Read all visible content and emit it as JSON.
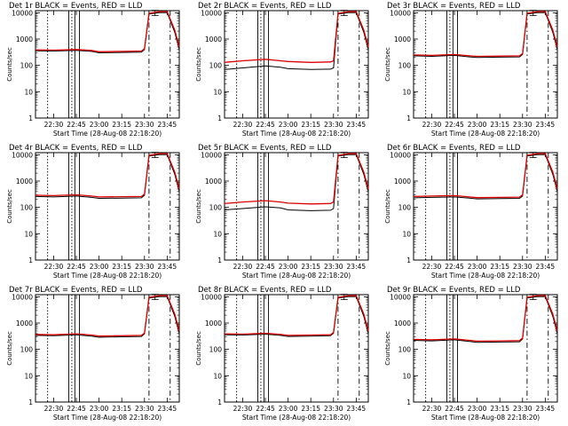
{
  "figure": {
    "xlabel": "Start Time (28-Aug-08 22:18:20)",
    "ylabel": "Counts/sec",
    "legend_text": "BLACK = Events, RED = LLD"
  },
  "colors": {
    "events": "#000000",
    "lld": "#dd0000",
    "axes": "#000000",
    "background": "#ffffff"
  },
  "chart_data": [
    {
      "type": "line",
      "title": "Det 1r BLACK = Events, RED = LLD",
      "xlabel": "Start Time (28-Aug-08 22:18:20)",
      "ylabel": "Counts/sec",
      "y_scale": "log",
      "ylim": [
        1,
        12000
      ],
      "xlim": [
        "22:18",
        "23:53"
      ],
      "x_ticks": [
        "22:30",
        "22:45",
        "23:00",
        "23:15",
        "23:30",
        "23:45"
      ],
      "y_ticks": [
        "1",
        "10",
        "100",
        "1000",
        "10000"
      ],
      "series": [
        {
          "name": "Events",
          "x": [
            "22:18",
            "22:30",
            "22:45",
            "22:55",
            "23:00",
            "23:15",
            "23:28",
            "23:30",
            "23:33",
            "23:40",
            "23:45",
            "23:50",
            "23:53"
          ],
          "y": [
            360,
            350,
            370,
            340,
            300,
            310,
            320,
            400,
            9000,
            10000,
            10000,
            1800,
            400
          ]
        },
        {
          "name": "LLD",
          "x": [
            "22:18",
            "22:30",
            "22:45",
            "22:55",
            "23:00",
            "23:15",
            "23:28",
            "23:30",
            "23:33",
            "23:40",
            "23:45",
            "23:50",
            "23:53"
          ],
          "y": [
            390,
            380,
            400,
            370,
            330,
            340,
            350,
            430,
            9500,
            11000,
            11000,
            2200,
            500
          ]
        }
      ]
    },
    {
      "type": "line",
      "title": "Det 2r BLACK = Events, RED = LLD",
      "xlabel": "Start Time (28-Aug-08 22:18:20)",
      "ylabel": "Counts/sec",
      "y_scale": "log",
      "ylim": [
        1,
        12000
      ],
      "xlim": [
        "22:18",
        "23:53"
      ],
      "x_ticks": [
        "22:30",
        "22:45",
        "23:00",
        "23:15",
        "23:30",
        "23:45"
      ],
      "y_ticks": [
        "1",
        "10",
        "100",
        "1000",
        "10000"
      ],
      "series": [
        {
          "name": "Events",
          "x": [
            "22:18",
            "22:30",
            "22:45",
            "22:55",
            "23:00",
            "23:15",
            "23:28",
            "23:30",
            "23:33",
            "23:40",
            "23:45",
            "23:50",
            "23:53"
          ],
          "y": [
            70,
            80,
            95,
            85,
            75,
            70,
            72,
            80,
            9000,
            10000,
            10000,
            1800,
            400
          ]
        },
        {
          "name": "LLD",
          "x": [
            "22:18",
            "22:30",
            "22:45",
            "22:55",
            "23:00",
            "23:15",
            "23:28",
            "23:30",
            "23:33",
            "23:40",
            "23:45",
            "23:50",
            "23:53"
          ],
          "y": [
            130,
            150,
            170,
            150,
            140,
            130,
            135,
            150,
            9500,
            11000,
            11000,
            2200,
            500
          ]
        }
      ]
    },
    {
      "type": "line",
      "title": "Det 3r BLACK = Events, RED = LLD",
      "xlabel": "Start Time (28-Aug-08 22:18:20)",
      "ylabel": "Counts/sec",
      "y_scale": "log",
      "ylim": [
        1,
        12000
      ],
      "xlim": [
        "22:18",
        "23:53"
      ],
      "x_ticks": [
        "22:30",
        "22:45",
        "23:00",
        "23:15",
        "23:30",
        "23:45"
      ],
      "y_ticks": [
        "1",
        "10",
        "100",
        "1000",
        "10000"
      ],
      "series": [
        {
          "name": "Events",
          "x": [
            "22:18",
            "22:30",
            "22:45",
            "22:55",
            "23:00",
            "23:15",
            "23:28",
            "23:30",
            "23:33",
            "23:40",
            "23:45",
            "23:50",
            "23:53"
          ],
          "y": [
            230,
            220,
            240,
            210,
            200,
            205,
            210,
            260,
            9000,
            10000,
            10000,
            1800,
            400
          ]
        },
        {
          "name": "LLD",
          "x": [
            "22:18",
            "22:30",
            "22:45",
            "22:55",
            "23:00",
            "23:15",
            "23:28",
            "23:30",
            "23:33",
            "23:40",
            "23:45",
            "23:50",
            "23:53"
          ],
          "y": [
            250,
            240,
            260,
            230,
            220,
            225,
            230,
            280,
            9500,
            11000,
            11000,
            2200,
            500
          ]
        }
      ]
    },
    {
      "type": "line",
      "title": "Det 4r BLACK = Events, RED = LLD",
      "xlabel": "Start Time (28-Aug-08 22:18:20)",
      "ylabel": "Counts/sec",
      "y_scale": "log",
      "ylim": [
        1,
        12000
      ],
      "xlim": [
        "22:18",
        "23:53"
      ],
      "x_ticks": [
        "22:30",
        "22:45",
        "23:00",
        "23:15",
        "23:30",
        "23:45"
      ],
      "y_ticks": [
        "1",
        "10",
        "100",
        "1000",
        "10000"
      ],
      "series": [
        {
          "name": "Events",
          "x": [
            "22:18",
            "22:30",
            "22:45",
            "22:55",
            "23:00",
            "23:15",
            "23:28",
            "23:30",
            "23:33",
            "23:40",
            "23:45",
            "23:50",
            "23:53"
          ],
          "y": [
            260,
            250,
            270,
            240,
            220,
            225,
            230,
            290,
            9000,
            10000,
            10000,
            1800,
            400
          ]
        },
        {
          "name": "LLD",
          "x": [
            "22:18",
            "22:30",
            "22:45",
            "22:55",
            "23:00",
            "23:15",
            "23:28",
            "23:30",
            "23:33",
            "23:40",
            "23:45",
            "23:50",
            "23:53"
          ],
          "y": [
            290,
            280,
            300,
            270,
            250,
            255,
            260,
            320,
            9500,
            11000,
            11000,
            2200,
            500
          ]
        }
      ]
    },
    {
      "type": "line",
      "title": "Det 5r BLACK = Events, RED = LLD",
      "xlabel": "Start Time (28-Aug-08 22:18:20)",
      "ylabel": "Counts/sec",
      "y_scale": "log",
      "ylim": [
        1,
        12000
      ],
      "xlim": [
        "22:18",
        "23:53"
      ],
      "x_ticks": [
        "22:30",
        "22:45",
        "23:00",
        "23:15",
        "23:30",
        "23:45"
      ],
      "y_ticks": [
        "1",
        "10",
        "100",
        "1000",
        "10000"
      ],
      "series": [
        {
          "name": "Events",
          "x": [
            "22:18",
            "22:30",
            "22:45",
            "22:55",
            "23:00",
            "23:15",
            "23:28",
            "23:30",
            "23:33",
            "23:40",
            "23:45",
            "23:50",
            "23:53"
          ],
          "y": [
            80,
            90,
            105,
            95,
            80,
            75,
            78,
            90,
            9000,
            10000,
            10000,
            1800,
            400
          ]
        },
        {
          "name": "LLD",
          "x": [
            "22:18",
            "22:30",
            "22:45",
            "22:55",
            "23:00",
            "23:15",
            "23:28",
            "23:30",
            "23:33",
            "23:40",
            "23:45",
            "23:50",
            "23:53"
          ],
          "y": [
            140,
            160,
            180,
            160,
            145,
            135,
            140,
            160,
            9500,
            11000,
            11000,
            2200,
            500
          ]
        }
      ]
    },
    {
      "type": "line",
      "title": "Det 6r BLACK = Events, RED = LLD",
      "xlabel": "Start Time (28-Aug-08 22:18:20)",
      "ylabel": "Counts/sec",
      "y_scale": "log",
      "ylim": [
        1,
        12000
      ],
      "xlim": [
        "22:18",
        "23:53"
      ],
      "x_ticks": [
        "22:30",
        "22:45",
        "23:00",
        "23:15",
        "23:30",
        "23:45"
      ],
      "y_ticks": [
        "1",
        "10",
        "100",
        "1000",
        "10000"
      ],
      "series": [
        {
          "name": "Events",
          "x": [
            "22:18",
            "22:30",
            "22:45",
            "22:55",
            "23:00",
            "23:15",
            "23:28",
            "23:30",
            "23:33",
            "23:40",
            "23:45",
            "23:50",
            "23:53"
          ],
          "y": [
            230,
            240,
            250,
            225,
            210,
            215,
            220,
            270,
            9000,
            10000,
            10000,
            1800,
            400
          ]
        },
        {
          "name": "LLD",
          "x": [
            "22:18",
            "22:30",
            "22:45",
            "22:55",
            "23:00",
            "23:15",
            "23:28",
            "23:30",
            "23:33",
            "23:40",
            "23:45",
            "23:50",
            "23:53"
          ],
          "y": [
            260,
            270,
            280,
            250,
            235,
            240,
            245,
            300,
            9500,
            11000,
            11000,
            2200,
            500
          ]
        }
      ]
    },
    {
      "type": "line",
      "title": "Det 7r BLACK = Events, RED = LLD",
      "xlabel": "Start Time (28-Aug-08 22:18:20)",
      "ylabel": "Counts/sec",
      "y_scale": "log",
      "ylim": [
        1,
        12000
      ],
      "xlim": [
        "22:18",
        "23:53"
      ],
      "x_ticks": [
        "22:30",
        "22:45",
        "23:00",
        "23:15",
        "23:30",
        "23:45"
      ],
      "y_ticks": [
        "1",
        "10",
        "100",
        "1000",
        "10000"
      ],
      "series": [
        {
          "name": "Events",
          "x": [
            "22:18",
            "22:30",
            "22:45",
            "22:55",
            "23:00",
            "23:15",
            "23:28",
            "23:30",
            "23:33",
            "23:40",
            "23:45",
            "23:50",
            "23:53"
          ],
          "y": [
            340,
            330,
            360,
            320,
            290,
            300,
            310,
            390,
            9000,
            10000,
            10000,
            1800,
            400
          ]
        },
        {
          "name": "LLD",
          "x": [
            "22:18",
            "22:30",
            "22:45",
            "22:55",
            "23:00",
            "23:15",
            "23:28",
            "23:30",
            "23:33",
            "23:40",
            "23:45",
            "23:50",
            "23:53"
          ],
          "y": [
            370,
            360,
            390,
            350,
            320,
            330,
            340,
            420,
            9500,
            11000,
            11000,
            2200,
            500
          ]
        }
      ]
    },
    {
      "type": "line",
      "title": "Det 8r BLACK = Events, RED = LLD",
      "xlabel": "Start Time (28-Aug-08 22:18:20)",
      "ylabel": "Counts/sec",
      "y_scale": "log",
      "ylim": [
        1,
        12000
      ],
      "xlim": [
        "22:18",
        "23:53"
      ],
      "x_ticks": [
        "22:30",
        "22:45",
        "23:00",
        "23:15",
        "23:30",
        "23:45"
      ],
      "y_ticks": [
        "1",
        "10",
        "100",
        "1000",
        "10000"
      ],
      "series": [
        {
          "name": "Events",
          "x": [
            "22:18",
            "22:30",
            "22:45",
            "22:55",
            "23:00",
            "23:15",
            "23:28",
            "23:30",
            "23:33",
            "23:40",
            "23:45",
            "23:50",
            "23:53"
          ],
          "y": [
            360,
            350,
            380,
            340,
            310,
            320,
            330,
            410,
            9000,
            10000,
            10000,
            1800,
            400
          ]
        },
        {
          "name": "LLD",
          "x": [
            "22:18",
            "22:30",
            "22:45",
            "22:55",
            "23:00",
            "23:15",
            "23:28",
            "23:30",
            "23:33",
            "23:40",
            "23:45",
            "23:50",
            "23:53"
          ],
          "y": [
            390,
            380,
            410,
            370,
            340,
            350,
            360,
            440,
            9500,
            11000,
            11000,
            2200,
            500
          ]
        }
      ]
    },
    {
      "type": "line",
      "title": "Det 9r BLACK = Events, RED = LLD",
      "xlabel": "Start Time (28-Aug-08 22:18:20)",
      "ylabel": "Counts/sec",
      "y_scale": "log",
      "ylim": [
        1,
        12000
      ],
      "xlim": [
        "22:18",
        "23:53"
      ],
      "x_ticks": [
        "22:30",
        "22:45",
        "23:00",
        "23:15",
        "23:30",
        "23:45"
      ],
      "y_ticks": [
        "1",
        "10",
        "100",
        "1000",
        "10000"
      ],
      "series": [
        {
          "name": "Events",
          "x": [
            "22:18",
            "22:30",
            "22:45",
            "22:55",
            "23:00",
            "23:15",
            "23:28",
            "23:30",
            "23:33",
            "23:40",
            "23:45",
            "23:50",
            "23:53"
          ],
          "y": [
            220,
            210,
            230,
            200,
            185,
            190,
            195,
            250,
            9000,
            10000,
            10000,
            1800,
            400
          ]
        },
        {
          "name": "LLD",
          "x": [
            "22:18",
            "22:30",
            "22:45",
            "22:55",
            "23:00",
            "23:15",
            "23:28",
            "23:30",
            "23:33",
            "23:40",
            "23:45",
            "23:50",
            "23:53"
          ],
          "y": [
            240,
            230,
            250,
            220,
            205,
            210,
            215,
            270,
            9500,
            11000,
            11000,
            2200,
            500
          ]
        }
      ]
    }
  ]
}
